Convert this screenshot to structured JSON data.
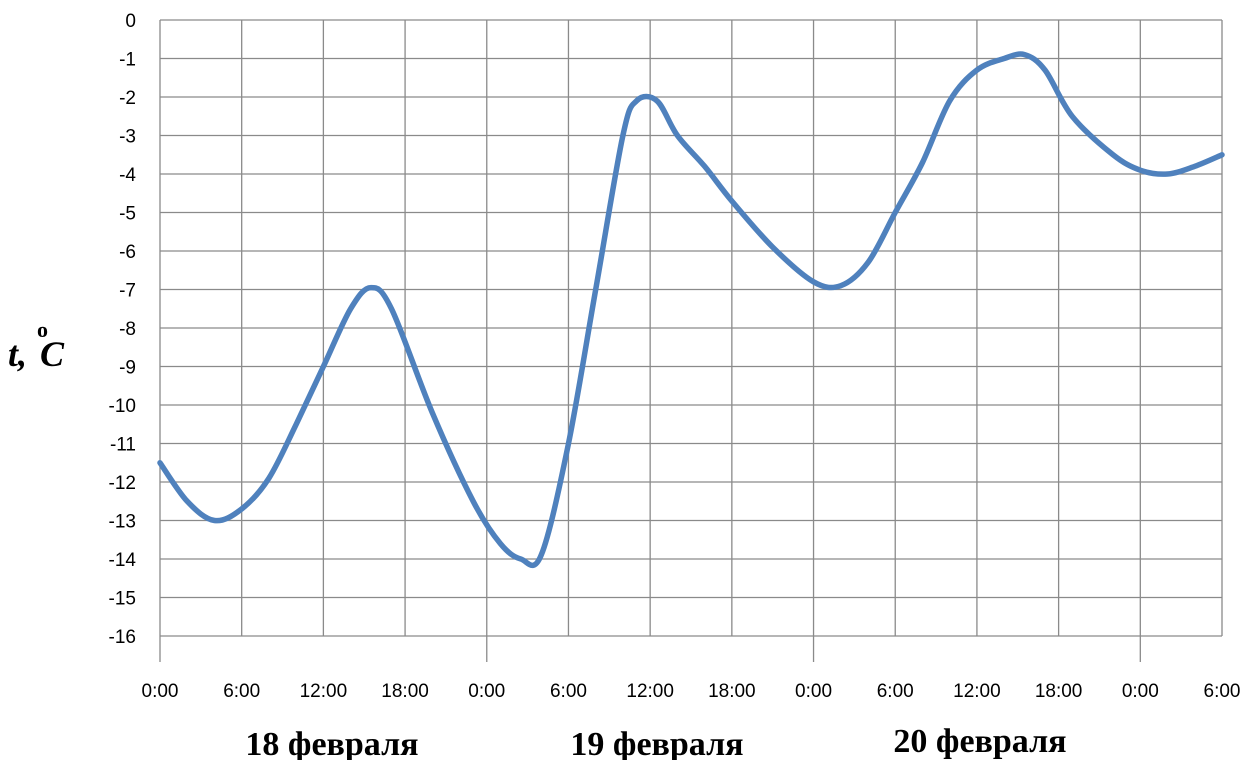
{
  "chart_data": {
    "type": "line",
    "ylabel": "t,°C",
    "ylabel_parts": {
      "var": "t,",
      "degree": "o",
      "unit": "C"
    },
    "ylim": [
      -16,
      0
    ],
    "yticks": [
      "0",
      "-1",
      "-2",
      "-3",
      "-4",
      "-5",
      "-6",
      "-7",
      "-8",
      "-9",
      "-10",
      "-11",
      "-12",
      "-13",
      "-14",
      "-15",
      "-16"
    ],
    "x_tick_labels": [
      "0:00",
      "6:00",
      "12:00",
      "18:00",
      "0:00",
      "6:00",
      "12:00",
      "18:00",
      "0:00",
      "6:00",
      "12:00",
      "18:00",
      "0:00",
      "6:00"
    ],
    "x_hours_range": [
      0,
      78
    ],
    "date_labels": [
      "18 февраля",
      "19 февраля",
      "20 февраля"
    ],
    "grid": true,
    "series": [
      {
        "color": "#4f81bd",
        "x_hours": [
          0,
          2,
          4,
          6,
          8,
          10,
          12,
          14,
          15.5,
          17,
          20,
          23,
          25,
          26.5,
          28,
          30,
          32,
          34,
          35,
          36.5,
          38,
          40,
          42,
          45,
          48,
          50,
          52,
          54,
          56,
          58,
          60,
          62,
          63.5,
          65,
          67,
          70,
          72,
          74,
          76,
          78
        ],
        "values": [
          -11.5,
          -12.5,
          -13.0,
          -12.7,
          -11.9,
          -10.5,
          -9.0,
          -7.5,
          -6.95,
          -7.5,
          -10.2,
          -12.5,
          -13.6,
          -14.0,
          -13.9,
          -11.0,
          -7.0,
          -3.0,
          -2.1,
          -2.1,
          -3.0,
          -3.8,
          -4.7,
          -5.9,
          -6.8,
          -6.9,
          -6.3,
          -5.0,
          -3.7,
          -2.1,
          -1.3,
          -1.0,
          -0.9,
          -1.3,
          -2.5,
          -3.5,
          -3.9,
          -4.0,
          -3.8,
          -3.5
        ]
      }
    ]
  }
}
